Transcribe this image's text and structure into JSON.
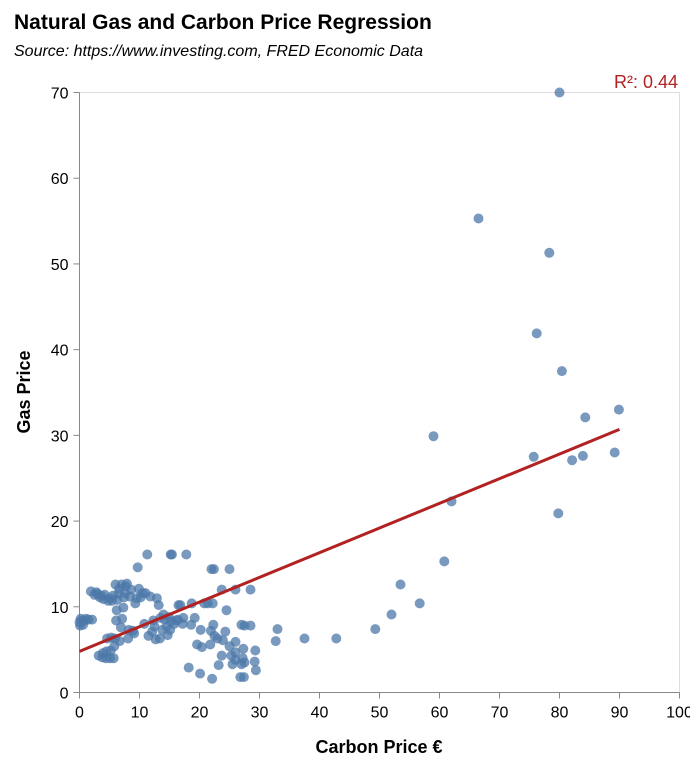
{
  "chart_data": {
    "type": "scatter",
    "title": "Natural Gas and Carbon Price Regression",
    "subtitle": "Source: https://www.investing.com, FRED Economic Data",
    "xlabel": "Carbon Price €",
    "ylabel": "Gas Price",
    "xlim": [
      0,
      100
    ],
    "ylim": [
      0,
      70
    ],
    "xticks": [
      0,
      10,
      20,
      30,
      40,
      50,
      60,
      70,
      80,
      90,
      100
    ],
    "yticks": [
      0,
      10,
      20,
      30,
      40,
      50,
      60,
      70
    ],
    "grid": false,
    "point_color": "#4c78a8",
    "line_color": "#b22222",
    "annotation": "R²: 0.44",
    "regression": {
      "x": [
        0,
        90
      ],
      "y": [
        4.8,
        30.7
      ]
    },
    "points": [
      [
        80,
        70
      ],
      [
        66.5,
        55.3
      ],
      [
        78.3,
        51.3
      ],
      [
        76.2,
        41.9
      ],
      [
        80.4,
        37.5
      ],
      [
        89.9,
        33
      ],
      [
        84.3,
        32.1
      ],
      [
        59,
        29.9
      ],
      [
        75.7,
        27.5
      ],
      [
        83.9,
        27.6
      ],
      [
        82.1,
        27.1
      ],
      [
        89.2,
        28
      ],
      [
        62,
        22.3
      ],
      [
        79.8,
        20.9
      ],
      [
        60.8,
        15.3
      ],
      [
        53.5,
        12.6
      ],
      [
        56.7,
        10.4
      ],
      [
        52,
        9.1
      ],
      [
        49.3,
        7.4
      ],
      [
        42.8,
        6.3
      ],
      [
        37.5,
        6.3
      ],
      [
        33,
        7.4
      ],
      [
        32.7,
        6
      ],
      [
        29.3,
        4.9
      ],
      [
        29.2,
        3.6
      ],
      [
        29.4,
        2.6
      ],
      [
        28.5,
        7.8
      ],
      [
        28.5,
        12
      ],
      [
        27.5,
        7.8
      ],
      [
        27,
        7.9
      ],
      [
        27.3,
        5.1
      ],
      [
        27.2,
        4
      ],
      [
        27.5,
        3.5
      ],
      [
        27,
        3.3
      ],
      [
        27.4,
        1.8
      ],
      [
        26.8,
        1.8
      ],
      [
        26,
        4.7
      ],
      [
        26,
        3.8
      ],
      [
        25.5,
        3.3
      ],
      [
        25.3,
        4.3
      ],
      [
        25,
        5.4
      ],
      [
        26,
        5.9
      ],
      [
        26,
        12
      ],
      [
        25,
        14.4
      ],
      [
        24.5,
        9.6
      ],
      [
        24.3,
        7.1
      ],
      [
        23.7,
        12
      ],
      [
        23.9,
        6.1
      ],
      [
        23.7,
        4.3
      ],
      [
        23.2,
        3.2
      ],
      [
        23,
        6.3
      ],
      [
        22.5,
        6.6
      ],
      [
        22.3,
        7.9
      ],
      [
        22.2,
        10.4
      ],
      [
        22.4,
        14.4
      ],
      [
        22,
        14.4
      ],
      [
        21.9,
        7.2
      ],
      [
        21.8,
        5.6
      ],
      [
        22.1,
        1.6
      ],
      [
        21.4,
        10.4
      ],
      [
        20.8,
        10.4
      ],
      [
        20.4,
        5.3
      ],
      [
        20.2,
        7.3
      ],
      [
        20.1,
        2.2
      ],
      [
        19.2,
        8.7
      ],
      [
        19.6,
        5.6
      ],
      [
        18.7,
        10.4
      ],
      [
        18.6,
        7.9
      ],
      [
        18.2,
        2.9
      ],
      [
        17.8,
        16.1
      ],
      [
        17.3,
        8.7
      ],
      [
        17.2,
        8
      ],
      [
        16.8,
        10.2
      ],
      [
        16.5,
        10.2
      ],
      [
        16.4,
        8.5
      ],
      [
        16.1,
        8.4
      ],
      [
        15.8,
        8
      ],
      [
        15.4,
        16.1
      ],
      [
        15.2,
        16.1
      ],
      [
        15.2,
        8.3
      ],
      [
        15.1,
        7.3
      ],
      [
        14.9,
        8.8
      ],
      [
        14.7,
        6.7
      ],
      [
        14.5,
        7.7
      ],
      [
        14.2,
        8.5
      ],
      [
        14,
        9.1
      ],
      [
        13.8,
        7.3
      ],
      [
        13.5,
        8.7
      ],
      [
        13.4,
        6.3
      ],
      [
        13.2,
        10.2
      ],
      [
        12.9,
        11
      ],
      [
        12.7,
        6.2
      ],
      [
        12.5,
        7.7
      ],
      [
        12.3,
        8.4
      ],
      [
        12.1,
        7.1
      ],
      [
        11.8,
        11.2
      ],
      [
        11.5,
        6.6
      ],
      [
        11.3,
        16.1
      ],
      [
        11,
        11.6
      ],
      [
        10.8,
        8
      ],
      [
        10.5,
        11.6
      ],
      [
        10.2,
        11.1
      ],
      [
        9.9,
        12.1
      ],
      [
        9.7,
        14.6
      ],
      [
        9.5,
        11
      ],
      [
        9.3,
        10.4
      ],
      [
        9.1,
        6.9
      ],
      [
        8.9,
        7.2
      ],
      [
        8.6,
        12
      ],
      [
        8.4,
        11.2
      ],
      [
        8.2,
        7.3
      ],
      [
        8.1,
        6.3
      ],
      [
        7.9,
        12.7
      ],
      [
        7.7,
        12.4
      ],
      [
        7.6,
        11.6
      ],
      [
        7.4,
        11.1
      ],
      [
        7.3,
        9.9
      ],
      [
        7.1,
        8.6
      ],
      [
        7,
        12.6
      ],
      [
        6.9,
        7.6
      ],
      [
        6.7,
        6
      ],
      [
        6.6,
        12.1
      ],
      [
        6.5,
        11.5
      ],
      [
        6.3,
        10.8
      ],
      [
        6.2,
        9.6
      ],
      [
        6.1,
        8.4
      ],
      [
        6,
        12.6
      ],
      [
        5.9,
        6.3
      ],
      [
        5.8,
        5.4
      ],
      [
        5.7,
        4
      ],
      [
        5.6,
        11.3
      ],
      [
        5.4,
        10.7
      ],
      [
        5.3,
        6.4
      ],
      [
        5.2,
        4.9
      ],
      [
        5.1,
        4
      ],
      [
        5,
        11
      ],
      [
        4.8,
        10.7
      ],
      [
        4.6,
        6.3
      ],
      [
        4.5,
        4.8
      ],
      [
        4.4,
        4
      ],
      [
        4.2,
        11.4
      ],
      [
        4,
        10.9
      ],
      [
        3.9,
        4.6
      ],
      [
        3.8,
        4.1
      ],
      [
        3.6,
        11.3
      ],
      [
        3.4,
        11.1
      ],
      [
        3.2,
        4.3
      ],
      [
        3,
        11.5
      ],
      [
        2.8,
        11.7
      ],
      [
        2.5,
        11.4
      ],
      [
        2.1,
        8.5
      ],
      [
        1.9,
        11.8
      ],
      [
        1.5,
        8.5
      ],
      [
        1.1,
        8.6
      ],
      [
        0.8,
        8.4
      ],
      [
        0.6,
        7.9
      ],
      [
        0.4,
        8.4
      ],
      [
        0.2,
        8.6
      ],
      [
        0,
        8.2
      ],
      [
        0.1,
        7.8
      ]
    ]
  }
}
